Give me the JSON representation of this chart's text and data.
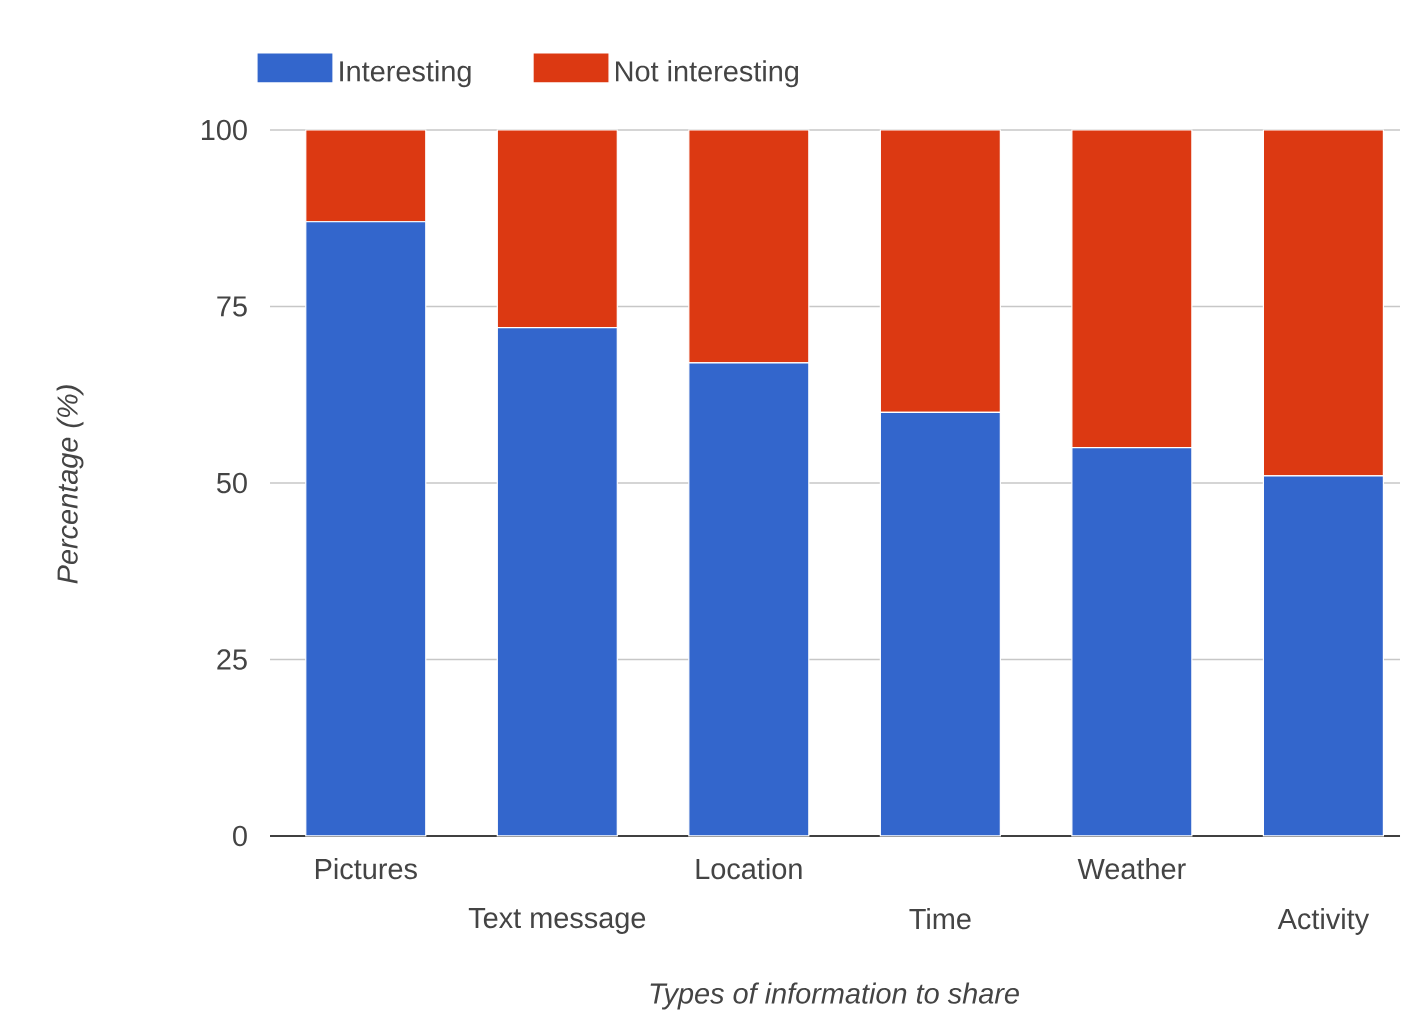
{
  "chart_data": {
    "type": "bar",
    "stacked": true,
    "xlabel": "Types of information to share",
    "ylabel": "Percentage (%)",
    "categories": [
      "Pictures",
      "Text message",
      "Location",
      "Time",
      "Weather",
      "Activity"
    ],
    "series": [
      {
        "name": "Interesting",
        "color": "#3366cc",
        "values": [
          87,
          72,
          67,
          60,
          55,
          51
        ]
      },
      {
        "name": "Not interesting",
        "color": "#dc3912",
        "values": [
          13,
          28,
          33,
          40,
          45,
          49
        ]
      }
    ],
    "ylim": [
      0,
      100
    ],
    "yticks": [
      0,
      25,
      50,
      75,
      100
    ],
    "grid": "y",
    "legend": "top left"
  }
}
